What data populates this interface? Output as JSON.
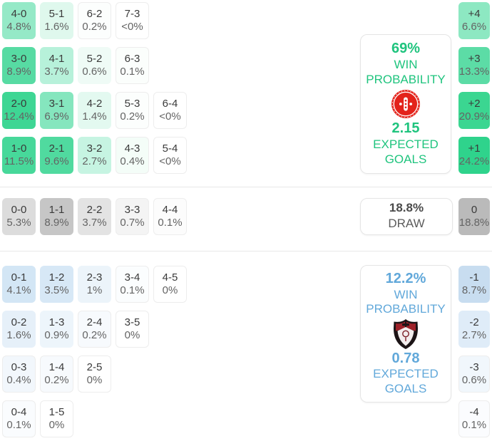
{
  "home": {
    "accent": "#1fc47e",
    "rows": [
      [
        {
          "label": "4-0",
          "pct": "4.8%",
          "bg": "#95e9c7"
        },
        {
          "label": "5-1",
          "pct": "1.6%",
          "bg": "#dff8ed"
        },
        {
          "label": "6-2",
          "pct": "0.2%",
          "bg": "#fcfefd"
        },
        {
          "label": "7-3",
          "pct": "<0%",
          "bg": "#ffffff"
        }
      ],
      [
        {
          "label": "3-0",
          "pct": "8.9%",
          "bg": "#57dba3"
        },
        {
          "label": "4-1",
          "pct": "3.7%",
          "bg": "#b7f1da"
        },
        {
          "label": "5-2",
          "pct": "0.6%",
          "bg": "#effbf6"
        },
        {
          "label": "6-3",
          "pct": "0.1%",
          "bg": "#fbfefc"
        }
      ],
      [
        {
          "label": "2-0",
          "pct": "12.4%",
          "bg": "#3ed694"
        },
        {
          "label": "3-1",
          "pct": "6.9%",
          "bg": "#85e6be"
        },
        {
          "label": "4-2",
          "pct": "1.4%",
          "bg": "#e3f9f0"
        },
        {
          "label": "5-3",
          "pct": "0.2%",
          "bg": "#fcfefd"
        },
        {
          "label": "6-4",
          "pct": "<0%",
          "bg": "#ffffff"
        }
      ],
      [
        {
          "label": "1-0",
          "pct": "11.5%",
          "bg": "#47d89a"
        },
        {
          "label": "2-1",
          "pct": "9.6%",
          "bg": "#50da9f"
        },
        {
          "label": "3-2",
          "pct": "2.7%",
          "bg": "#c6f4e2"
        },
        {
          "label": "4-3",
          "pct": "0.4%",
          "bg": "#f4fdf8"
        },
        {
          "label": "5-4",
          "pct": "<0%",
          "bg": "#ffffff"
        }
      ]
    ],
    "margins": [
      {
        "label": "+4",
        "pct": "6.6%",
        "bg": "#8de8c2"
      },
      {
        "label": "+3",
        "pct": "13.3%",
        "bg": "#5cdca6"
      },
      {
        "label": "+2",
        "pct": "20.9%",
        "bg": "#3bd691"
      },
      {
        "label": "+1",
        "pct": "24.2%",
        "bg": "#2fd38c"
      }
    ],
    "panel": {
      "probability": "69%",
      "win_label": "WIN PROBABILITY",
      "xg": "2.15",
      "xg_label": "EXPECTED GOALS"
    }
  },
  "draw": {
    "accent": "#4a4a4a",
    "rows": [
      [
        {
          "label": "0-0",
          "pct": "5.3%",
          "bg": "#dcdcdc"
        },
        {
          "label": "1-1",
          "pct": "8.9%",
          "bg": "#c6c6c6"
        },
        {
          "label": "2-2",
          "pct": "3.7%",
          "bg": "#e3e3e3"
        },
        {
          "label": "3-3",
          "pct": "0.7%",
          "bg": "#f4f4f4"
        },
        {
          "label": "4-4",
          "pct": "0.1%",
          "bg": "#fcfcfc"
        }
      ]
    ],
    "margins": [
      {
        "label": "0",
        "pct": "18.8%",
        "bg": "#bababa"
      }
    ],
    "panel": {
      "probability": "18.8%",
      "label": "DRAW"
    }
  },
  "away": {
    "accent": "#61a8da",
    "rows": [
      [
        {
          "label": "0-1",
          "pct": "4.1%",
          "bg": "#d3e6f5"
        },
        {
          "label": "1-2",
          "pct": "3.5%",
          "bg": "#d7e8f6"
        },
        {
          "label": "2-3",
          "pct": "1%",
          "bg": "#ecf4fa"
        },
        {
          "label": "3-4",
          "pct": "0.1%",
          "bg": "#fbfdfe"
        },
        {
          "label": "4-5",
          "pct": "0%",
          "bg": "#ffffff"
        }
      ],
      [
        {
          "label": "0-2",
          "pct": "1.6%",
          "bg": "#e6f0f9"
        },
        {
          "label": "1-3",
          "pct": "0.9%",
          "bg": "#edf5fb"
        },
        {
          "label": "2-4",
          "pct": "0.2%",
          "bg": "#f7fafd"
        },
        {
          "label": "3-5",
          "pct": "0%",
          "bg": "#ffffff"
        }
      ],
      [
        {
          "label": "0-3",
          "pct": "0.4%",
          "bg": "#f2f7fc"
        },
        {
          "label": "1-4",
          "pct": "0.2%",
          "bg": "#f7fafd"
        },
        {
          "label": "2-5",
          "pct": "0%",
          "bg": "#ffffff"
        }
      ],
      [
        {
          "label": "0-4",
          "pct": "0.1%",
          "bg": "#fafcfe"
        },
        {
          "label": "1-5",
          "pct": "0%",
          "bg": "#ffffff"
        }
      ]
    ],
    "margins": [
      {
        "label": "-1",
        "pct": "8.7%",
        "bg": "#c8ddf0"
      },
      {
        "label": "-2",
        "pct": "2.7%",
        "bg": "#dfecf8"
      },
      {
        "label": "-3",
        "pct": "0.6%",
        "bg": "#f1f7fc"
      },
      {
        "label": "-4",
        "pct": "0.1%",
        "bg": "#fbfcfe"
      }
    ],
    "panel": {
      "probability": "12.2%",
      "win_label": "WIN PROBABILITY",
      "xg": "0.78",
      "xg_label": "EXPECTED GOALS"
    }
  }
}
